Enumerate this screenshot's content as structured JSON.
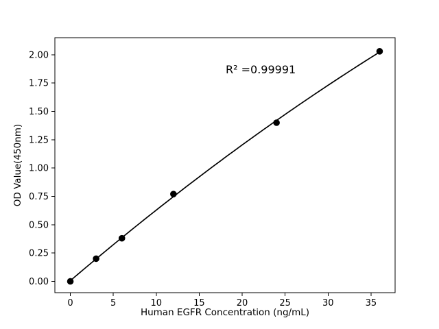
{
  "chart_data": {
    "type": "scatter",
    "xlabel": "Human EGFR Concentration (ng/mL)",
    "ylabel": "OD Value(450nm)",
    "x": [
      0,
      3,
      6,
      12,
      24,
      36
    ],
    "y": [
      0.0,
      0.2,
      0.38,
      0.77,
      1.4,
      2.03
    ],
    "fit": {
      "type": "polynomial",
      "degree": 2
    },
    "annotation": {
      "text": "R² =0.99991",
      "axes_fraction": {
        "x": 0.605,
        "y": 0.875
      }
    },
    "xticks": [
      0,
      5,
      10,
      15,
      20,
      25,
      30,
      35
    ],
    "xtick_labels": [
      "0",
      "5",
      "10",
      "15",
      "20",
      "25",
      "30",
      "35"
    ],
    "yticks": [
      0.0,
      0.25,
      0.5,
      0.75,
      1.0,
      1.25,
      1.5,
      1.75,
      2.0
    ],
    "ytick_labels": [
      "0.00",
      "0.25",
      "0.50",
      "0.75",
      "1.00",
      "1.25",
      "1.50",
      "1.75",
      "2.00"
    ],
    "xlim": [
      -1.8,
      37.8
    ],
    "ylim": [
      -0.1,
      2.15
    ],
    "grid": false,
    "legend": null,
    "colors": {
      "background": "#ffffff",
      "curve": "#000000",
      "marker": "#000000",
      "text": "#000000"
    }
  }
}
